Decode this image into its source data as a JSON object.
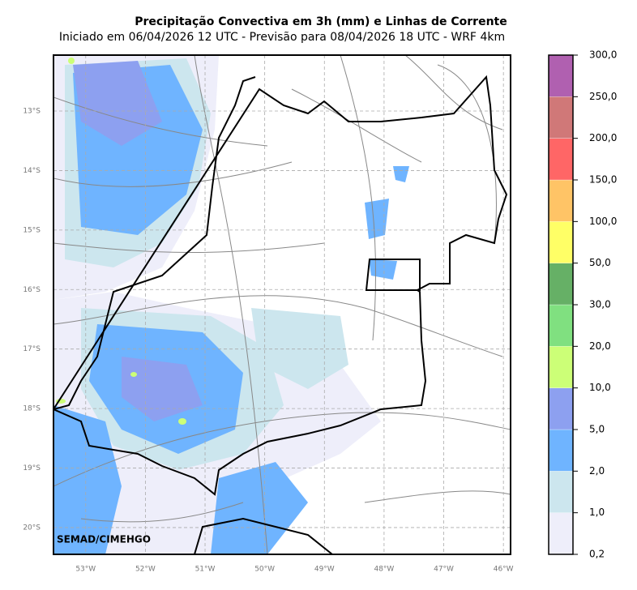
{
  "title": "Precipitação Convectiva em 3h (mm) e Linhas de Corrente",
  "subtitle": "Iniciado em 06/04/2026 12 UTC - Previsão para 08/04/2026 18 UTC - WRF 4km",
  "map": {
    "credit": "SEMAD/CIMEHGO",
    "xlim": [
      -53.54,
      -45.88
    ],
    "ylim": [
      -12.06,
      -20.45
    ],
    "lat_labels": [
      {
        "value": -13,
        "label": "13°S"
      },
      {
        "value": -14,
        "label": "14°S"
      },
      {
        "value": -15,
        "label": "15°S"
      },
      {
        "value": -16,
        "label": "16°S"
      },
      {
        "value": -17,
        "label": "17°S"
      },
      {
        "value": -18,
        "label": "18°S"
      },
      {
        "value": -19,
        "label": "19°S"
      },
      {
        "value": -20,
        "label": "20°S"
      }
    ],
    "lon_labels": [
      {
        "value": -53,
        "label": "53°W"
      },
      {
        "value": -52,
        "label": "52°W"
      },
      {
        "value": -51,
        "label": "51°W"
      },
      {
        "value": -50,
        "label": "50°W"
      },
      {
        "value": -49,
        "label": "49°W"
      },
      {
        "value": -48,
        "label": "48°W"
      },
      {
        "value": -47,
        "label": "47°W"
      },
      {
        "value": -46,
        "label": "46°W"
      }
    ]
  },
  "colorbar": {
    "ticks": [
      {
        "value": 0.2,
        "label": "0,2"
      },
      {
        "value": 1,
        "label": "1,0"
      },
      {
        "value": 2,
        "label": "2,0"
      },
      {
        "value": 5,
        "label": "5,0"
      },
      {
        "value": 10,
        "label": "10,0"
      },
      {
        "value": 20,
        "label": "20,0"
      },
      {
        "value": 30,
        "label": "30,0"
      },
      {
        "value": 50,
        "label": "50,0"
      },
      {
        "value": 100,
        "label": "100,0"
      },
      {
        "value": 150,
        "label": "150,0"
      },
      {
        "value": 200,
        "label": "200,0"
      },
      {
        "value": 250,
        "label": "250,0"
      },
      {
        "value": 300,
        "label": "300,0"
      }
    ],
    "colors": [
      "#eeeefa",
      "#cce6ee",
      "#6fb4ff",
      "#8da0f0",
      "#ccff77",
      "#80e080",
      "#66b066",
      "#ffff66",
      "#ffc466",
      "#ff6666",
      "#d07878",
      "#b060b0"
    ]
  }
}
